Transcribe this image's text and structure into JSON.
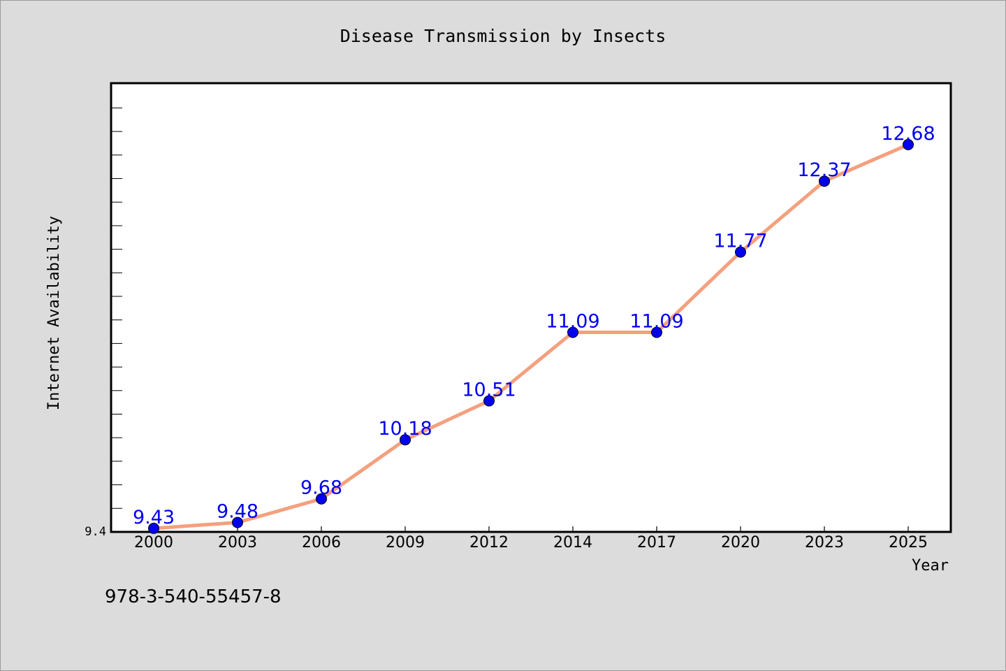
{
  "chart_data": {
    "type": "line",
    "title": "Disease Transmission by Insects",
    "xlabel": "Year",
    "ylabel": "Internet Availability",
    "categories": [
      "2000",
      "2003",
      "2006",
      "2009",
      "2012",
      "2014",
      "2017",
      "2020",
      "2023",
      "2025"
    ],
    "series": [
      {
        "values": [
          9.43,
          9.48,
          9.68,
          10.18,
          10.51,
          11.09,
          11.09,
          11.77,
          12.37,
          12.68
        ],
        "color": "#f4a07f",
        "marker_color": "#0000ee"
      }
    ],
    "data_labels": [
      "9.43",
      "9.48",
      "9.68",
      "10.18",
      "10.51",
      "11.09",
      "11.09",
      "11.77",
      "12.37",
      "12.68"
    ],
    "y_tick_labels": [
      "9.4"
    ],
    "ylim": [
      9.4,
      13.2
    ],
    "grid": false,
    "legend": "none",
    "label_color": "#0000ee",
    "background_color": "#dcdcdc",
    "plot_background_color": "#ffffff"
  },
  "footer_text": "978-3-540-55457-8"
}
